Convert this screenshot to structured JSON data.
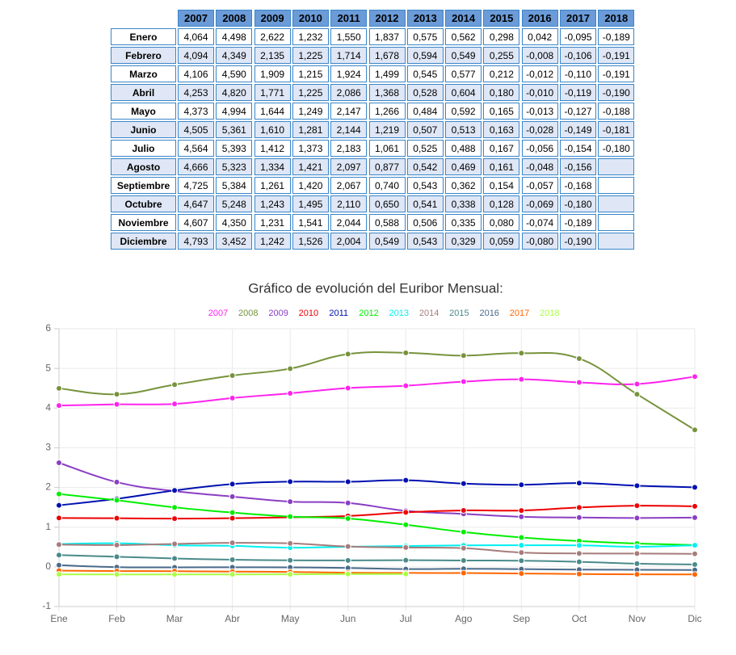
{
  "table": {
    "months": [
      "Enero",
      "Febrero",
      "Marzo",
      "Abril",
      "Mayo",
      "Junio",
      "Julio",
      "Agosto",
      "Septiembre",
      "Octubre",
      "Noviembre",
      "Diciembre"
    ]
  },
  "chart_data": {
    "type": "line",
    "title": "Gráfico de evolución del Euribor Mensual:",
    "categories": [
      "Ene",
      "Feb",
      "Mar",
      "Abr",
      "May",
      "Jun",
      "Jul",
      "Ago",
      "Sep",
      "Oct",
      "Nov",
      "Dic"
    ],
    "ylim": [
      -1,
      6
    ],
    "yticks": [
      -1,
      0,
      1,
      2,
      3,
      4,
      5,
      6
    ],
    "grid": true,
    "legend": "top",
    "series": [
      {
        "name": "2007",
        "color": "#ff22ee",
        "values": [
          4.064,
          4.094,
          4.106,
          4.253,
          4.373,
          4.505,
          4.564,
          4.666,
          4.725,
          4.647,
          4.607,
          4.793
        ],
        "value_labels": [
          "4,064",
          "4,094",
          "4,106",
          "4,253",
          "4,373",
          "4,505",
          "4,564",
          "4,666",
          "4,725",
          "4,647",
          "4,607",
          "4,793"
        ]
      },
      {
        "name": "2008",
        "color": "#77933c",
        "values": [
          4.498,
          4.349,
          4.59,
          4.82,
          4.994,
          5.361,
          5.393,
          5.323,
          5.384,
          5.248,
          4.35,
          3.452
        ],
        "value_labels": [
          "4,498",
          "4,349",
          "4,590",
          "4,820",
          "4,994",
          "5,361",
          "5,393",
          "5,323",
          "5,384",
          "5,248",
          "4,350",
          "3,452"
        ]
      },
      {
        "name": "2009",
        "color": "#8a3ec4",
        "values": [
          2.622,
          2.135,
          1.909,
          1.771,
          1.644,
          1.61,
          1.412,
          1.334,
          1.261,
          1.243,
          1.231,
          1.242
        ],
        "value_labels": [
          "2,622",
          "2,135",
          "1,909",
          "1,771",
          "1,644",
          "1,610",
          "1,412",
          "1,334",
          "1,261",
          "1,243",
          "1,231",
          "1,242"
        ]
      },
      {
        "name": "2010",
        "color": "#ee0000",
        "values": [
          1.232,
          1.225,
          1.215,
          1.225,
          1.249,
          1.281,
          1.373,
          1.421,
          1.42,
          1.495,
          1.541,
          1.526
        ],
        "value_labels": [
          "1,232",
          "1,225",
          "1,215",
          "1,225",
          "1,249",
          "1,281",
          "1,373",
          "1,421",
          "1,420",
          "1,495",
          "1,541",
          "1,526"
        ]
      },
      {
        "name": "2011",
        "color": "#0010b0",
        "values": [
          1.55,
          1.714,
          1.924,
          2.086,
          2.147,
          2.144,
          2.183,
          2.097,
          2.067,
          2.11,
          2.044,
          2.004
        ],
        "value_labels": [
          "1,550",
          "1,714",
          "1,924",
          "2,086",
          "2,147",
          "2,144",
          "2,183",
          "2,097",
          "2,067",
          "2,110",
          "2,044",
          "2,004"
        ]
      },
      {
        "name": "2012",
        "color": "#00ee00",
        "values": [
          1.837,
          1.678,
          1.499,
          1.368,
          1.266,
          1.219,
          1.061,
          0.877,
          0.74,
          0.65,
          0.588,
          0.549
        ],
        "value_labels": [
          "1,837",
          "1,678",
          "1,499",
          "1,368",
          "1,266",
          "1,219",
          "1,061",
          "0,877",
          "0,740",
          "0,650",
          "0,588",
          "0,549"
        ]
      },
      {
        "name": "2013",
        "color": "#00f0f0",
        "values": [
          0.575,
          0.594,
          0.545,
          0.528,
          0.484,
          0.507,
          0.525,
          0.542,
          0.543,
          0.541,
          0.506,
          0.543
        ],
        "value_labels": [
          "0,575",
          "0,594",
          "0,545",
          "0,528",
          "0,484",
          "0,507",
          "0,525",
          "0,542",
          "0,543",
          "0,541",
          "0,506",
          "0,543"
        ]
      },
      {
        "name": "2014",
        "color": "#a67c7c",
        "values": [
          0.562,
          0.549,
          0.577,
          0.604,
          0.592,
          0.513,
          0.488,
          0.469,
          0.362,
          0.338,
          0.335,
          0.329
        ],
        "value_labels": [
          "0,562",
          "0,549",
          "0,577",
          "0,604",
          "0,592",
          "0,513",
          "0,488",
          "0,469",
          "0,362",
          "0,338",
          "0,335",
          "0,329"
        ]
      },
      {
        "name": "2015",
        "color": "#4a8a8a",
        "values": [
          0.298,
          0.255,
          0.212,
          0.18,
          0.165,
          0.163,
          0.167,
          0.161,
          0.154,
          0.128,
          0.08,
          0.059
        ],
        "value_labels": [
          "0,298",
          "0,255",
          "0,212",
          "0,180",
          "0,165",
          "0,163",
          "0,167",
          "0,161",
          "0,154",
          "0,128",
          "0,080",
          "0,059"
        ]
      },
      {
        "name": "2016",
        "color": "#4a6a8a",
        "values": [
          0.042,
          -0.008,
          -0.012,
          -0.01,
          -0.013,
          -0.028,
          -0.056,
          -0.048,
          -0.057,
          -0.069,
          -0.074,
          -0.08
        ],
        "value_labels": [
          "0,042",
          "-0,008",
          "-0,012",
          "-0,010",
          "-0,013",
          "-0,028",
          "-0,056",
          "-0,048",
          "-0,057",
          "-0,069",
          "-0,074",
          "-0,080"
        ]
      },
      {
        "name": "2017",
        "color": "#ff6600",
        "values": [
          -0.095,
          -0.106,
          -0.11,
          -0.119,
          -0.127,
          -0.149,
          -0.154,
          -0.156,
          -0.168,
          -0.18,
          -0.189,
          -0.19
        ],
        "value_labels": [
          "-0,095",
          "-0,106",
          "-0,110",
          "-0,119",
          "-0,127",
          "-0,149",
          "-0,154",
          "-0,156",
          "-0,168",
          "-0,180",
          "-0,189",
          "-0,190"
        ]
      },
      {
        "name": "2018",
        "color": "#aaff44",
        "values": [
          -0.189,
          -0.191,
          -0.191,
          -0.19,
          -0.188,
          -0.181,
          -0.18,
          null,
          null,
          null,
          null,
          null
        ],
        "value_labels": [
          "-0,189",
          "-0,191",
          "-0,191",
          "-0,190",
          "-0,188",
          "-0,181",
          "-0,180",
          null,
          null,
          null,
          null,
          null
        ]
      }
    ]
  }
}
